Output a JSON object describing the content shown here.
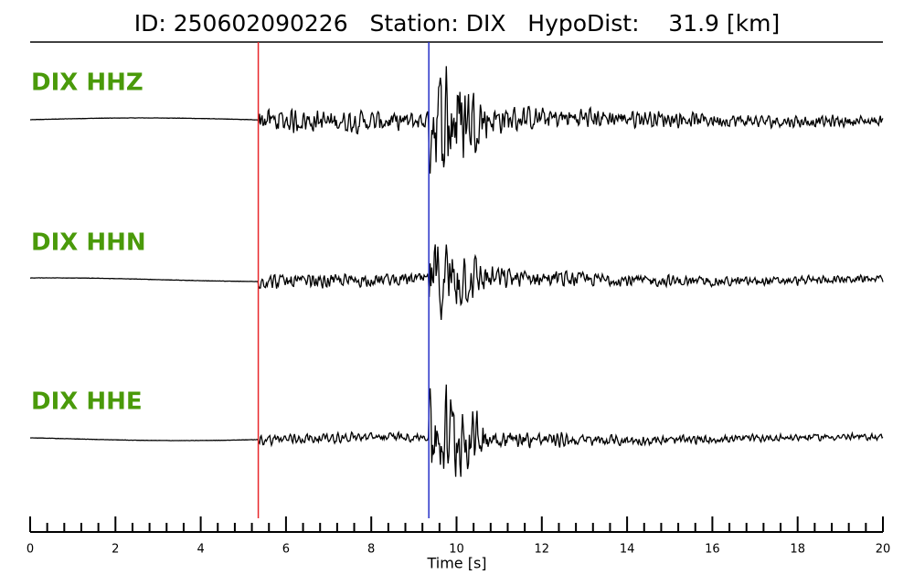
{
  "chart_data": {
    "type": "seismogram",
    "title": "ID: 250602090226   Station: DIX   HypoDist:    31.9 [km]",
    "xlabel": "Time [s]",
    "xlim": [
      0,
      20
    ],
    "xticks": [
      0,
      2,
      4,
      6,
      8,
      10,
      12,
      14,
      16,
      18,
      20
    ],
    "xminorticks": [
      0.4,
      0.8,
      1.2,
      1.6,
      2.4,
      2.8,
      3.2,
      3.6,
      4.4,
      4.8,
      5.2,
      5.6,
      6.4,
      6.8,
      7.2,
      7.6,
      8.4,
      8.8,
      9.2,
      9.6,
      10.4,
      10.8,
      11.2,
      11.6,
      12.4,
      12.8,
      13.2,
      13.6,
      14.4,
      14.8,
      15.2,
      15.6,
      16.4,
      16.8,
      17.2,
      17.6,
      18.4,
      18.8,
      19.2,
      19.6
    ],
    "traces": [
      {
        "name": "DIX HHZ"
      },
      {
        "name": "DIX HHN"
      },
      {
        "name": "DIX HHE"
      }
    ],
    "label_color": "#4a9a0a",
    "picks": [
      {
        "time": 5.35,
        "color": "#e8262a"
      },
      {
        "time": 9.35,
        "color": "#2630c8"
      }
    ]
  }
}
